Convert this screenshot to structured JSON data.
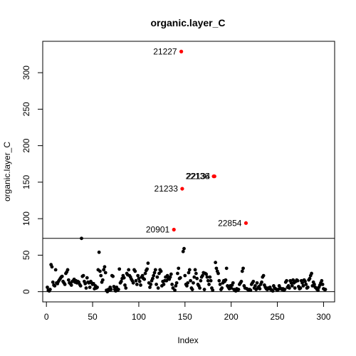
{
  "chart_data": {
    "type": "scatter",
    "title": "organic.layer_C",
    "xlabel": "Index",
    "ylabel": "organic.layer_C",
    "xlim": [
      -4,
      312
    ],
    "ylim": [
      -14,
      343
    ],
    "xticks": [
      "0",
      "50",
      "100",
      "150",
      "200",
      "250",
      "300"
    ],
    "yticks": [
      "0",
      "50",
      "100",
      "150",
      "200",
      "250",
      "300"
    ],
    "grid": false,
    "legend": "none",
    "reference_lines": {
      "cutoff": 73,
      "zero": 0
    },
    "colors": {
      "normal": "#000000",
      "outlier": "#ff0000",
      "lines": "#000000"
    },
    "outliers": [
      {
        "label": "21227",
        "x": 146,
        "y": 329,
        "label_side": "left"
      },
      {
        "label": "22136",
        "x": 181,
        "y": 158,
        "label_side": "left"
      },
      {
        "label": "22134",
        "x": 182,
        "y": 158,
        "label_side": "left"
      },
      {
        "label": "21233",
        "x": 147,
        "y": 141,
        "label_side": "left"
      },
      {
        "label": "20901",
        "x": 138,
        "y": 85,
        "label_side": "left"
      },
      {
        "label": "22854",
        "x": 216,
        "y": 94,
        "label_side": "left"
      }
    ],
    "points": [
      [
        1,
        6
      ],
      [
        2,
        2
      ],
      [
        3,
        1
      ],
      [
        4,
        3
      ],
      [
        5,
        37
      ],
      [
        6,
        34
      ],
      [
        7,
        13
      ],
      [
        8,
        9
      ],
      [
        9,
        8
      ],
      [
        10,
        30
      ],
      [
        11,
        12
      ],
      [
        12,
        11
      ],
      [
        13,
        14
      ],
      [
        14,
        16
      ],
      [
        15,
        18
      ],
      [
        16,
        20
      ],
      [
        17,
        21
      ],
      [
        18,
        14
      ],
      [
        19,
        12
      ],
      [
        20,
        10
      ],
      [
        21,
        25
      ],
      [
        22,
        27
      ],
      [
        23,
        30
      ],
      [
        24,
        16
      ],
      [
        25,
        12
      ],
      [
        26,
        11
      ],
      [
        27,
        9
      ],
      [
        28,
        14
      ],
      [
        29,
        15
      ],
      [
        30,
        17
      ],
      [
        31,
        13
      ],
      [
        32,
        15
      ],
      [
        33,
        12
      ],
      [
        34,
        14
      ],
      [
        35,
        13
      ],
      [
        36,
        10
      ],
      [
        37,
        8
      ],
      [
        38,
        73
      ],
      [
        39,
        21
      ],
      [
        40,
        22
      ],
      [
        41,
        14
      ],
      [
        42,
        11
      ],
      [
        43,
        5
      ],
      [
        44,
        19
      ],
      [
        45,
        13
      ],
      [
        46,
        12
      ],
      [
        47,
        6
      ],
      [
        48,
        14
      ],
      [
        49,
        12
      ],
      [
        50,
        10
      ],
      [
        51,
        11
      ],
      [
        52,
        4
      ],
      [
        53,
        8
      ],
      [
        54,
        5
      ],
      [
        55,
        6
      ],
      [
        56,
        30
      ],
      [
        57,
        54
      ],
      [
        58,
        28
      ],
      [
        59,
        22
      ],
      [
        60,
        13
      ],
      [
        61,
        16
      ],
      [
        62,
        30
      ],
      [
        63,
        34
      ],
      [
        64,
        26
      ],
      [
        65,
        2
      ],
      [
        66,
        0
      ],
      [
        67,
        3
      ],
      [
        68,
        2
      ],
      [
        69,
        6
      ],
      [
        70,
        3
      ],
      [
        71,
        22
      ],
      [
        72,
        21
      ],
      [
        73,
        7
      ],
      [
        74,
        3
      ],
      [
        75,
        1
      ],
      [
        76,
        6
      ],
      [
        77,
        2
      ],
      [
        78,
        3
      ],
      [
        79,
        31
      ],
      [
        80,
        12
      ],
      [
        81,
        14
      ],
      [
        82,
        18
      ],
      [
        83,
        22
      ],
      [
        84,
        19
      ],
      [
        85,
        9
      ],
      [
        86,
        5
      ],
      [
        87,
        25
      ],
      [
        88,
        23
      ],
      [
        89,
        30
      ],
      [
        90,
        22
      ],
      [
        91,
        20
      ],
      [
        92,
        17
      ],
      [
        93,
        15
      ],
      [
        94,
        12
      ],
      [
        95,
        30
      ],
      [
        96,
        28
      ],
      [
        97,
        15
      ],
      [
        98,
        10
      ],
      [
        99,
        22
      ],
      [
        100,
        18
      ],
      [
        101,
        14
      ],
      [
        102,
        9
      ],
      [
        103,
        20
      ],
      [
        104,
        22
      ],
      [
        105,
        18
      ],
      [
        106,
        17
      ],
      [
        107,
        25
      ],
      [
        108,
        29
      ],
      [
        109,
        31
      ],
      [
        110,
        39
      ],
      [
        111,
        12
      ],
      [
        112,
        6
      ],
      [
        113,
        10
      ],
      [
        114,
        15
      ],
      [
        115,
        18
      ],
      [
        116,
        22
      ],
      [
        117,
        26
      ],
      [
        118,
        30
      ],
      [
        119,
        10
      ],
      [
        120,
        20
      ],
      [
        121,
        5
      ],
      [
        122,
        25
      ],
      [
        123,
        30
      ],
      [
        124,
        28
      ],
      [
        125,
        8
      ],
      [
        126,
        14
      ],
      [
        127,
        10
      ],
      [
        128,
        15
      ],
      [
        129,
        20
      ],
      [
        130,
        15
      ],
      [
        131,
        22
      ],
      [
        132,
        18
      ],
      [
        133,
        17
      ],
      [
        134,
        20
      ],
      [
        135,
        24
      ],
      [
        136,
        10
      ],
      [
        137,
        5
      ],
      [
        139,
        2
      ],
      [
        140,
        8
      ],
      [
        141,
        12
      ],
      [
        142,
        25
      ],
      [
        143,
        32
      ],
      [
        144,
        18
      ],
      [
        145,
        19
      ],
      [
        148,
        55
      ],
      [
        149,
        59
      ],
      [
        150,
        22
      ],
      [
        151,
        10
      ],
      [
        152,
        8
      ],
      [
        153,
        12
      ],
      [
        154,
        26
      ],
      [
        155,
        30
      ],
      [
        156,
        15
      ],
      [
        157,
        5
      ],
      [
        158,
        3
      ],
      [
        159,
        12
      ],
      [
        160,
        20
      ],
      [
        161,
        30
      ],
      [
        162,
        25
      ],
      [
        163,
        18
      ],
      [
        164,
        10
      ],
      [
        165,
        8
      ],
      [
        166,
        5
      ],
      [
        167,
        15
      ],
      [
        168,
        20
      ],
      [
        169,
        22
      ],
      [
        170,
        26
      ],
      [
        171,
        3
      ],
      [
        172,
        25
      ],
      [
        173,
        24
      ],
      [
        174,
        20
      ],
      [
        175,
        15
      ],
      [
        176,
        10
      ],
      [
        177,
        20
      ],
      [
        178,
        15
      ],
      [
        179,
        5
      ],
      [
        180,
        2
      ],
      [
        183,
        40
      ],
      [
        184,
        32
      ],
      [
        185,
        28
      ],
      [
        186,
        25
      ],
      [
        187,
        15
      ],
      [
        188,
        10
      ],
      [
        189,
        3
      ],
      [
        190,
        5
      ],
      [
        191,
        12
      ],
      [
        192,
        15
      ],
      [
        193,
        14
      ],
      [
        194,
        16
      ],
      [
        195,
        32
      ],
      [
        196,
        8
      ],
      [
        197,
        6
      ],
      [
        198,
        4
      ],
      [
        199,
        8
      ],
      [
        200,
        5
      ],
      [
        201,
        9
      ],
      [
        202,
        12
      ],
      [
        203,
        3
      ],
      [
        204,
        2
      ],
      [
        205,
        1
      ],
      [
        206,
        4
      ],
      [
        207,
        2
      ],
      [
        208,
        3
      ],
      [
        209,
        10
      ],
      [
        210,
        12
      ],
      [
        211,
        14
      ],
      [
        212,
        28
      ],
      [
        213,
        32
      ],
      [
        214,
        8
      ],
      [
        215,
        5
      ],
      [
        217,
        4
      ],
      [
        218,
        3
      ],
      [
        219,
        2
      ],
      [
        220,
        3
      ],
      [
        221,
        2
      ],
      [
        222,
        10
      ],
      [
        223,
        12
      ],
      [
        224,
        14
      ],
      [
        225,
        5
      ],
      [
        226,
        8
      ],
      [
        227,
        3
      ],
      [
        228,
        12
      ],
      [
        229,
        5
      ],
      [
        230,
        7
      ],
      [
        231,
        4
      ],
      [
        232,
        10
      ],
      [
        233,
        13
      ],
      [
        234,
        20
      ],
      [
        235,
        22
      ],
      [
        236,
        9
      ],
      [
        237,
        6
      ],
      [
        238,
        4
      ],
      [
        239,
        3
      ],
      [
        240,
        5
      ],
      [
        241,
        4
      ],
      [
        242,
        6
      ],
      [
        243,
        3
      ],
      [
        244,
        2
      ],
      [
        245,
        1
      ],
      [
        246,
        8
      ],
      [
        247,
        5
      ],
      [
        248,
        4
      ],
      [
        249,
        3
      ],
      [
        250,
        2
      ],
      [
        251,
        3
      ],
      [
        252,
        8
      ],
      [
        253,
        5
      ],
      [
        254,
        4
      ],
      [
        255,
        3
      ],
      [
        256,
        4
      ],
      [
        257,
        2
      ],
      [
        258,
        3
      ],
      [
        259,
        13
      ],
      [
        260,
        15
      ],
      [
        261,
        6
      ],
      [
        262,
        8
      ],
      [
        263,
        5
      ],
      [
        264,
        15
      ],
      [
        265,
        12
      ],
      [
        266,
        8
      ],
      [
        267,
        16
      ],
      [
        268,
        12
      ],
      [
        269,
        5
      ],
      [
        270,
        14
      ],
      [
        271,
        16
      ],
      [
        272,
        15
      ],
      [
        273,
        7
      ],
      [
        274,
        4
      ],
      [
        275,
        5
      ],
      [
        276,
        15
      ],
      [
        277,
        12
      ],
      [
        278,
        8
      ],
      [
        279,
        16
      ],
      [
        280,
        14
      ],
      [
        281,
        10
      ],
      [
        282,
        5
      ],
      [
        283,
        6
      ],
      [
        284,
        16
      ],
      [
        285,
        18
      ],
      [
        286,
        22
      ],
      [
        287,
        25
      ],
      [
        288,
        8
      ],
      [
        289,
        13
      ],
      [
        290,
        10
      ],
      [
        291,
        6
      ],
      [
        292,
        5
      ],
      [
        293,
        3
      ],
      [
        294,
        2
      ],
      [
        295,
        6
      ],
      [
        296,
        9
      ],
      [
        297,
        12
      ],
      [
        298,
        15
      ],
      [
        299,
        10
      ],
      [
        300,
        4
      ],
      [
        301,
        3
      ],
      [
        302,
        3
      ]
    ]
  }
}
